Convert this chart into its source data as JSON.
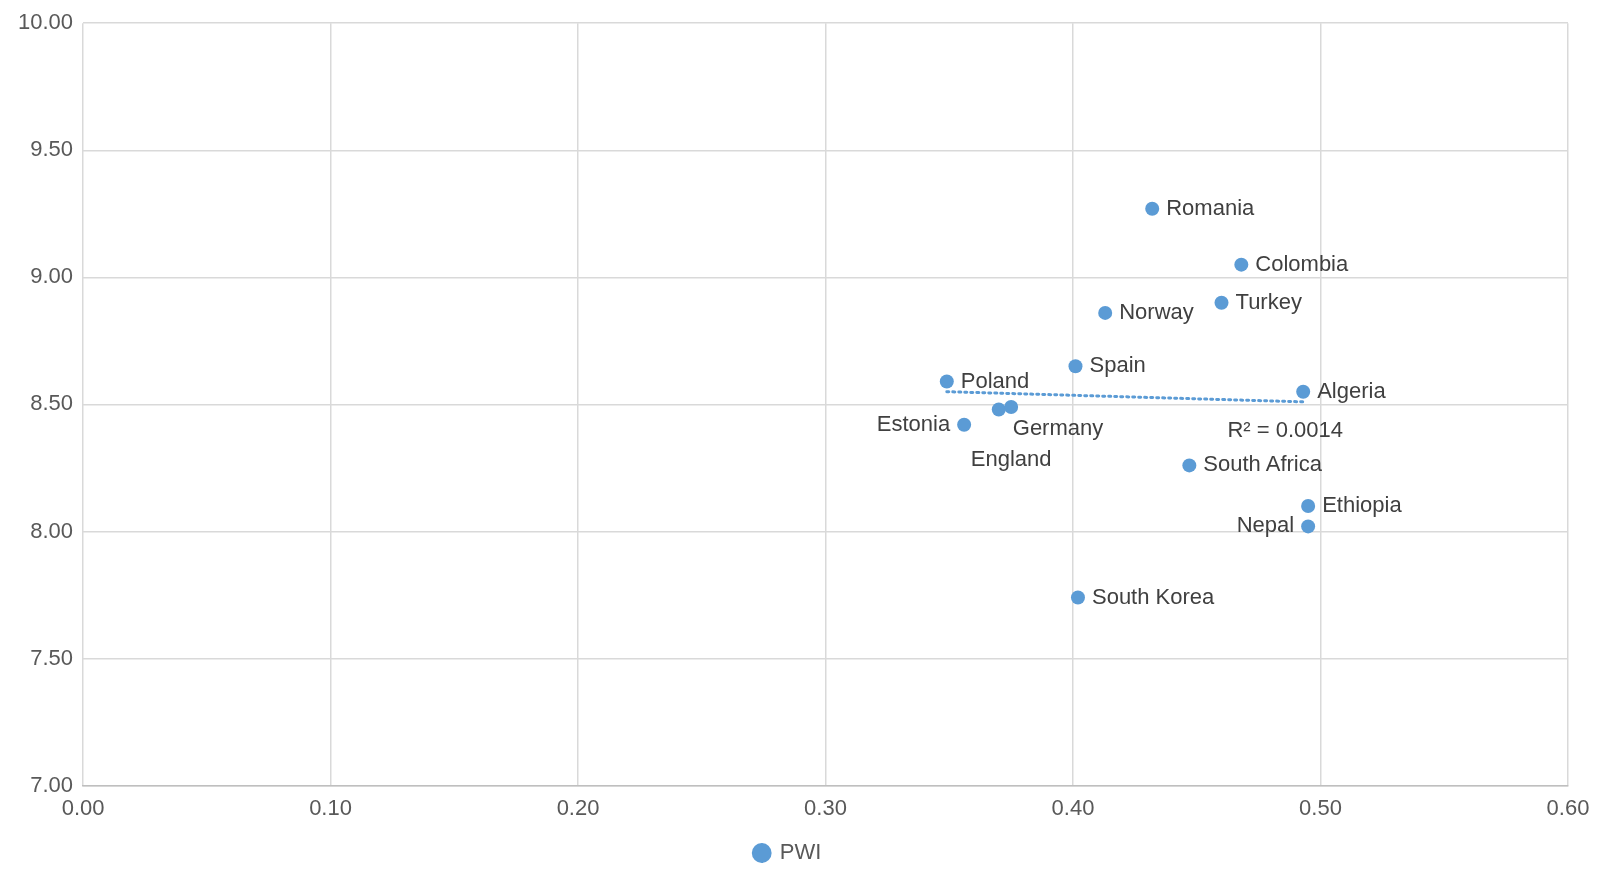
{
  "chart_data": {
    "type": "scatter",
    "x": [
      0.432,
      0.468,
      0.46,
      0.413,
      0.401,
      0.349,
      0.493,
      0.37,
      0.375,
      0.356,
      0.447,
      0.495,
      0.495,
      0.402
    ],
    "series": [
      {
        "name": "PWI",
        "color": "#5b9bd5",
        "values": [
          9.27,
          9.05,
          8.9,
          8.86,
          8.65,
          8.59,
          8.55,
          8.48,
          8.49,
          8.42,
          8.26,
          8.1,
          8.02,
          7.74
        ]
      },
      {
        "type": "line",
        "color": "#5b9bd5",
        "line_style": "dotted",
        "marker": "none",
        "x": [
          0.349,
          0.493
        ],
        "values": [
          8.55,
          8.51
        ]
      }
    ],
    "xlim": [
      0,
      0.6
    ],
    "xticks": [
      {
        "value": 0,
        "label": "0.00"
      },
      {
        "value": 0.1,
        "label": "0.10"
      },
      {
        "value": 0.2,
        "label": "0.20"
      },
      {
        "value": 0.3,
        "label": "0.30"
      },
      {
        "value": 0.4,
        "label": "0.40"
      },
      {
        "value": 0.5,
        "label": "0.50"
      },
      {
        "value": 0.6,
        "label": "0.60"
      }
    ],
    "ylim": [
      7,
      10
    ],
    "yticks": [
      {
        "value": 7,
        "label": "7.00"
      },
      {
        "value": 7.5,
        "label": "7.50"
      },
      {
        "value": 8,
        "label": "8.00"
      },
      {
        "value": 8.5,
        "label": "8.50"
      },
      {
        "value": 9,
        "label": "9.00"
      },
      {
        "value": 9.5,
        "label": "9.50"
      },
      {
        "value": 10,
        "label": "10.00"
      }
    ],
    "grid": true,
    "legend": "bottom",
    "marker": "circle",
    "annotations": [
      {
        "text": "Romania",
        "x": 0.432,
        "y": 9.27
      },
      {
        "text": "Colombia",
        "x": 0.468,
        "y": 9.05
      },
      {
        "text": "Turkey",
        "x": 0.46,
        "y": 8.9
      },
      {
        "text": "Norway",
        "x": 0.413,
        "y": 8.86
      },
      {
        "text": "Spain",
        "x": 0.401,
        "y": 8.65
      },
      {
        "text": "Poland",
        "x": 0.349,
        "y": 8.59
      },
      {
        "text": "Algeria",
        "x": 0.493,
        "y": 8.55
      },
      {
        "text": "Germany",
        "x": 0.37,
        "y": 8.48
      },
      {
        "text": "England",
        "x": 0.375,
        "y": 8.49
      },
      {
        "text": "Estonia",
        "x": 0.356,
        "y": 8.42
      },
      {
        "text": "South Africa",
        "x": 0.447,
        "y": 8.26
      },
      {
        "text": "Ethiopia",
        "x": 0.495,
        "y": 8.1
      },
      {
        "text": "Nepal",
        "x": 0.495,
        "y": 8.02
      },
      {
        "text": "South Korea",
        "x": 0.402,
        "y": 7.74
      },
      "R² = 0.0014"
    ]
  }
}
